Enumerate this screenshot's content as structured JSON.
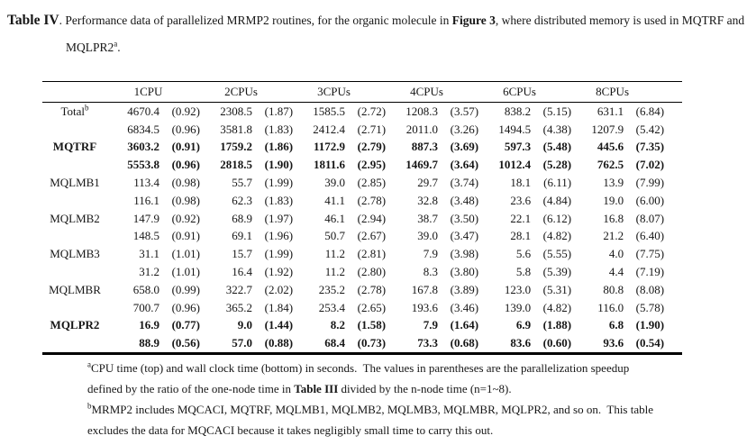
{
  "title": {
    "label": "Table IV",
    "after_label": ". ",
    "body": "Performance data of parallelized MRMP2 routines, for the organic molecule in ",
    "figure_ref": "Figure 3",
    "body2": ", where distributed memory is used in MQTRF and",
    "line2_word": "MQLPR2",
    "line2_sup": "a",
    "line2_period": "."
  },
  "table": {
    "col_groups": [
      "1CPU",
      "2CPUs",
      "3CPUs",
      "4CPUs",
      "6CPUs",
      "8CPUs"
    ],
    "rows": [
      {
        "label": "Total",
        "label_sup": "b",
        "bold": false,
        "lines": [
          [
            "4670.4",
            "(0.92)",
            "2308.5",
            "(1.87)",
            "1585.5",
            "(2.72)",
            "1208.3",
            "(3.57)",
            "838.2",
            "(5.15)",
            "631.1",
            "(6.84)"
          ],
          [
            "6834.5",
            "(0.96)",
            "3581.8",
            "(1.83)",
            "2412.4",
            "(2.71)",
            "2011.0",
            "(3.26)",
            "1494.5",
            "(4.38)",
            "1207.9",
            "(5.42)"
          ]
        ]
      },
      {
        "label": "MQTRF",
        "label_sup": "",
        "bold": true,
        "lines": [
          [
            "3603.2",
            "(0.91)",
            "1759.2",
            "(1.86)",
            "1172.9",
            "(2.79)",
            "887.3",
            "(3.69)",
            "597.3",
            "(5.48)",
            "445.6",
            "(7.35)"
          ],
          [
            "5553.8",
            "(0.96)",
            "2818.5",
            "(1.90)",
            "1811.6",
            "(2.95)",
            "1469.7",
            "(3.64)",
            "1012.4",
            "(5.28)",
            "762.5",
            "(7.02)"
          ]
        ]
      },
      {
        "label": "MQLMB1",
        "label_sup": "",
        "bold": false,
        "lines": [
          [
            "113.4",
            "(0.98)",
            "55.7",
            "(1.99)",
            "39.0",
            "(2.85)",
            "29.7",
            "(3.74)",
            "18.1",
            "(6.11)",
            "13.9",
            "(7.99)"
          ],
          [
            "116.1",
            "(0.98)",
            "62.3",
            "(1.83)",
            "41.1",
            "(2.78)",
            "32.8",
            "(3.48)",
            "23.6",
            "(4.84)",
            "19.0",
            "(6.00)"
          ]
        ]
      },
      {
        "label": "MQLMB2",
        "label_sup": "",
        "bold": false,
        "lines": [
          [
            "147.9",
            "(0.92)",
            "68.9",
            "(1.97)",
            "46.1",
            "(2.94)",
            "38.7",
            "(3.50)",
            "22.1",
            "(6.12)",
            "16.8",
            "(8.07)"
          ],
          [
            "148.5",
            "(0.91)",
            "69.1",
            "(1.96)",
            "50.7",
            "(2.67)",
            "39.0",
            "(3.47)",
            "28.1",
            "(4.82)",
            "21.2",
            "(6.40)"
          ]
        ]
      },
      {
        "label": "MQLMB3",
        "label_sup": "",
        "bold": false,
        "lines": [
          [
            "31.1",
            "(1.01)",
            "15.7",
            "(1.99)",
            "11.2",
            "(2.81)",
            "7.9",
            "(3.98)",
            "5.6",
            "(5.55)",
            "4.0",
            "(7.75)"
          ],
          [
            "31.2",
            "(1.01)",
            "16.4",
            "(1.92)",
            "11.2",
            "(2.80)",
            "8.3",
            "(3.80)",
            "5.8",
            "(5.39)",
            "4.4",
            "(7.19)"
          ]
        ]
      },
      {
        "label": "MQLMBR",
        "label_sup": "",
        "bold": false,
        "lines": [
          [
            "658.0",
            "(0.99)",
            "322.7",
            "(2.02)",
            "235.2",
            "(2.78)",
            "167.8",
            "(3.89)",
            "123.0",
            "(5.31)",
            "80.8",
            "(8.08)"
          ],
          [
            "700.7",
            "(0.96)",
            "365.2",
            "(1.84)",
            "253.4",
            "(2.65)",
            "193.6",
            "(3.46)",
            "139.0",
            "(4.82)",
            "116.0",
            "(5.78)"
          ]
        ]
      },
      {
        "label": "MQLPR2",
        "label_sup": "",
        "bold": true,
        "lines": [
          [
            "16.9",
            "(0.77)",
            "9.0",
            "(1.44)",
            "8.2",
            "(1.58)",
            "7.9",
            "(1.64)",
            "6.9",
            "(1.88)",
            "6.8",
            "(1.90)"
          ],
          [
            "88.9",
            "(0.56)",
            "57.0",
            "(0.88)",
            "68.4",
            "(0.73)",
            "73.3",
            "(0.68)",
            "83.6",
            "(0.60)",
            "93.6",
            "(0.54)"
          ]
        ]
      }
    ]
  },
  "footnotes": [
    {
      "marker": "a",
      "line1": "CPU time (top) and wall clock time (bottom) in seconds.  The values in parentheses are the parallelization speedup",
      "line2_pre": "defined by the ratio of the one-node time in ",
      "line2_bold": "Table III",
      "line2_post": " divided by the n-node time (n=1~8)."
    },
    {
      "marker": "b",
      "line1": "MRMP2 includes MQCACI, MQTRF, MQLMB1, MQLMB2, MQLMB3, MQLMBR, MQLPR2, and so on.  This table",
      "line2": "excludes the data for MQCACI because it takes negligibly small time to carry this out."
    }
  ]
}
